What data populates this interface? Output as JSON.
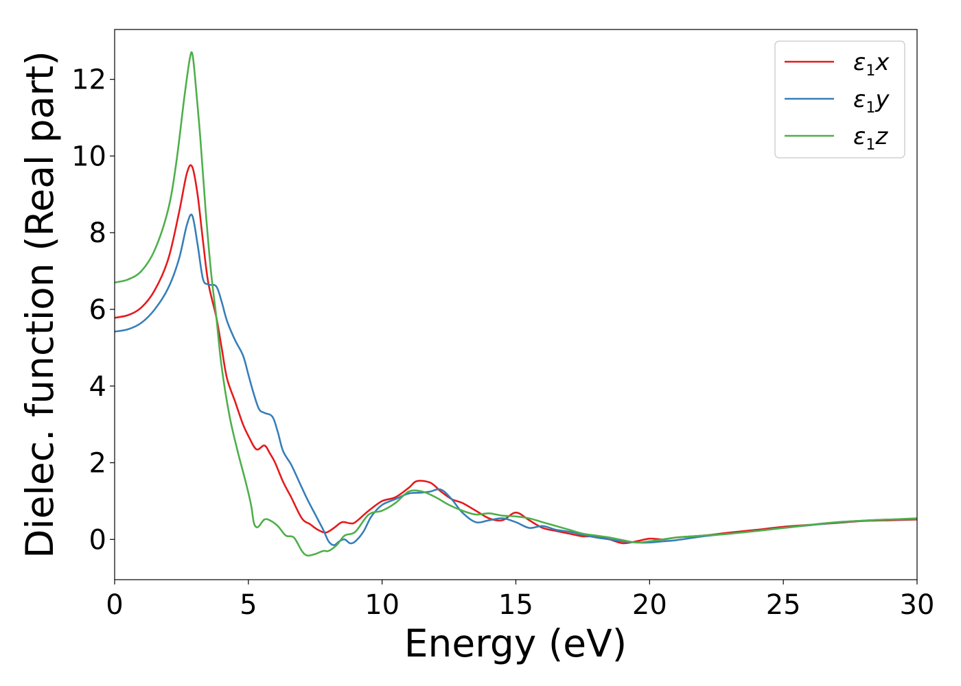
{
  "chart_data": {
    "type": "line",
    "xlabel": "Energy (eV)",
    "ylabel": "Dielec. function (Real part)",
    "xlim": [
      0,
      30
    ],
    "ylim": [
      -1.05,
      13.3
    ],
    "xticks": [
      "0",
      "5",
      "10",
      "15",
      "20",
      "25",
      "30"
    ],
    "yticks": [
      "0",
      "2",
      "4",
      "6",
      "8",
      "10",
      "12"
    ],
    "grid": false,
    "legend_position": "top-right",
    "series": [
      {
        "name": "ε1x",
        "legend_base": "ε",
        "legend_sub": "1",
        "legend_var": "x",
        "color": "#e41a1c",
        "x": [
          0,
          0.5,
          1.0,
          1.5,
          2.0,
          2.4,
          2.7,
          2.9,
          3.1,
          3.3,
          3.5,
          3.8,
          4.0,
          4.2,
          4.5,
          4.8,
          5.0,
          5.3,
          5.6,
          5.8,
          6.0,
          6.3,
          6.6,
          7.0,
          7.3,
          7.6,
          7.9,
          8.2,
          8.5,
          8.8,
          9.0,
          9.5,
          10.0,
          10.5,
          11.0,
          11.3,
          11.8,
          12.2,
          12.6,
          13.0,
          13.5,
          14.0,
          14.5,
          15.0,
          15.5,
          16.0,
          16.5,
          17.0,
          17.5,
          18.0,
          18.5,
          19.0,
          19.5,
          20.0,
          20.5,
          21.0,
          22.0,
          23.0,
          24.0,
          25.0,
          26.0,
          27.0,
          28.0,
          29.0,
          30.0
        ],
        "values": [
          5.78,
          5.85,
          6.05,
          6.5,
          7.3,
          8.5,
          9.55,
          9.72,
          9.0,
          7.8,
          6.7,
          5.8,
          5.0,
          4.2,
          3.6,
          3.0,
          2.7,
          2.35,
          2.45,
          2.25,
          2.0,
          1.5,
          1.1,
          0.55,
          0.4,
          0.25,
          0.18,
          0.3,
          0.45,
          0.42,
          0.45,
          0.75,
          1.0,
          1.1,
          1.35,
          1.52,
          1.48,
          1.25,
          1.05,
          0.95,
          0.75,
          0.55,
          0.5,
          0.7,
          0.5,
          0.3,
          0.22,
          0.15,
          0.08,
          0.08,
          0.0,
          -0.1,
          -0.05,
          0.02,
          0.0,
          0.05,
          0.1,
          0.18,
          0.25,
          0.33,
          0.38,
          0.43,
          0.48,
          0.5,
          0.52
        ]
      },
      {
        "name": "ε1y",
        "legend_base": "ε",
        "legend_sub": "1",
        "legend_var": "y",
        "color": "#377eb8",
        "x": [
          0,
          0.5,
          1.0,
          1.5,
          2.0,
          2.4,
          2.7,
          2.9,
          3.1,
          3.3,
          3.5,
          3.8,
          4.0,
          4.2,
          4.5,
          4.8,
          5.0,
          5.2,
          5.4,
          5.6,
          5.9,
          6.1,
          6.3,
          6.6,
          6.9,
          7.2,
          7.5,
          7.8,
          8.0,
          8.2,
          8.4,
          8.6,
          8.8,
          9.0,
          9.3,
          9.6,
          10.0,
          10.5,
          11.0,
          11.5,
          11.8,
          12.2,
          12.6,
          13.0,
          13.5,
          14.0,
          14.5,
          15.0,
          15.5,
          16.0,
          16.5,
          17.0,
          17.5,
          18.0,
          18.5,
          19.0,
          19.5,
          20.0,
          20.5,
          21.0,
          22.0,
          23.0,
          24.0,
          25.0,
          26.0,
          27.0,
          28.0,
          29.0,
          30.0
        ],
        "values": [
          5.42,
          5.48,
          5.65,
          6.0,
          6.55,
          7.3,
          8.2,
          8.45,
          7.7,
          6.8,
          6.65,
          6.6,
          6.2,
          5.7,
          5.2,
          4.8,
          4.3,
          3.8,
          3.4,
          3.3,
          3.2,
          2.8,
          2.3,
          1.95,
          1.5,
          1.05,
          0.65,
          0.25,
          -0.05,
          -0.15,
          -0.05,
          0.0,
          -0.1,
          -0.05,
          0.2,
          0.6,
          0.9,
          1.05,
          1.2,
          1.22,
          1.25,
          1.3,
          1.05,
          0.7,
          0.45,
          0.5,
          0.55,
          0.45,
          0.3,
          0.35,
          0.25,
          0.2,
          0.12,
          0.05,
          0.0,
          -0.05,
          -0.08,
          -0.08,
          -0.05,
          -0.02,
          0.08,
          0.15,
          0.22,
          0.3,
          0.37,
          0.44,
          0.49,
          0.52,
          0.53
        ]
      },
      {
        "name": "ε1z",
        "legend_base": "ε",
        "legend_sub": "1",
        "legend_var": "z",
        "color": "#4daf4a",
        "x": [
          0,
          0.5,
          1.0,
          1.5,
          2.0,
          2.3,
          2.6,
          2.8,
          2.9,
          3.0,
          3.2,
          3.4,
          3.6,
          3.8,
          4.0,
          4.3,
          4.6,
          4.9,
          5.1,
          5.2,
          5.3,
          5.4,
          5.6,
          5.8,
          6.1,
          6.4,
          6.7,
          7.0,
          7.2,
          7.5,
          7.8,
          8.0,
          8.3,
          8.6,
          9.0,
          9.5,
          10.0,
          10.5,
          11.0,
          11.5,
          12.0,
          12.5,
          13.0,
          13.5,
          14.0,
          14.5,
          15.0,
          15.5,
          16.0,
          16.5,
          17.0,
          17.5,
          18.0,
          18.5,
          19.0,
          19.5,
          20.0,
          21.0,
          22.0,
          23.0,
          24.0,
          25.0,
          26.0,
          27.0,
          28.0,
          29.0,
          30.0
        ],
        "values": [
          6.7,
          6.78,
          7.0,
          7.55,
          8.6,
          9.8,
          11.5,
          12.5,
          12.68,
          12.1,
          10.5,
          8.6,
          7.0,
          5.8,
          4.5,
          3.2,
          2.3,
          1.5,
          0.9,
          0.45,
          0.32,
          0.35,
          0.52,
          0.5,
          0.35,
          0.1,
          0.05,
          -0.3,
          -0.42,
          -0.38,
          -0.3,
          -0.3,
          -0.15,
          0.1,
          0.2,
          0.65,
          0.75,
          0.95,
          1.25,
          1.25,
          1.1,
          0.9,
          0.75,
          0.65,
          0.68,
          0.62,
          0.6,
          0.55,
          0.45,
          0.35,
          0.25,
          0.15,
          0.1,
          0.05,
          -0.02,
          -0.08,
          -0.05,
          0.05,
          0.1,
          0.15,
          0.22,
          0.3,
          0.38,
          0.45,
          0.49,
          0.52,
          0.55
        ]
      }
    ]
  }
}
